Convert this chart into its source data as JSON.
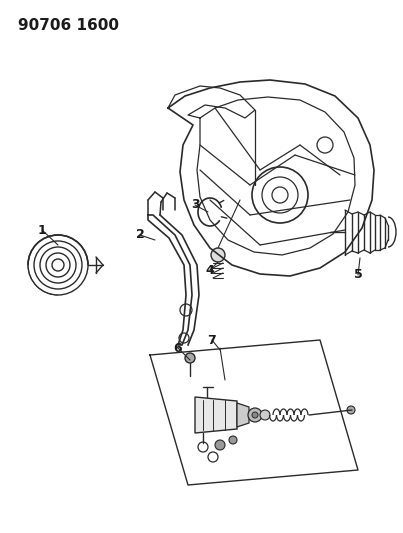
{
  "title": "90706 1600",
  "background_color": "#ffffff",
  "line_color": "#2a2a2a",
  "label_color": "#1a1a1a",
  "title_fontsize": 11,
  "label_fontsize": 9
}
